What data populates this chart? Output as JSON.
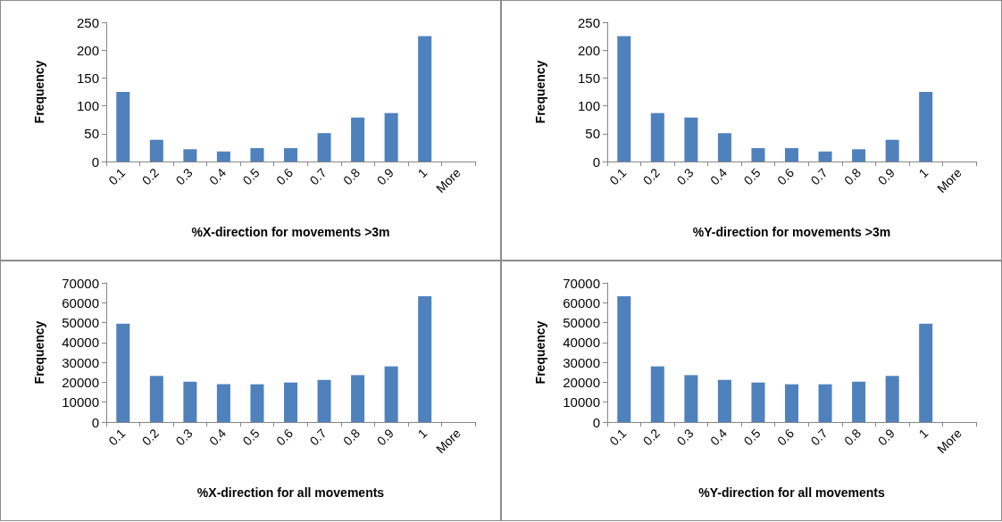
{
  "chart_data": [
    {
      "type": "bar",
      "xlabel": "%X-direction for movements >3m",
      "ylabel": "Frequency",
      "categories": [
        "0.1",
        "0.2",
        "0.3",
        "0.4",
        "0.5",
        "0.6",
        "0.7",
        "0.8",
        "0.9",
        "1",
        "More"
      ],
      "values": [
        125,
        39,
        22,
        18,
        24,
        24,
        51,
        79,
        87,
        225,
        0
      ],
      "color": "#4f81bd",
      "ylim": [
        0,
        250
      ],
      "yticks": [
        0,
        50,
        100,
        150,
        200,
        250
      ],
      "grid": false
    },
    {
      "type": "bar",
      "xlabel": "%Y-direction for movements >3m",
      "ylabel": "Frequency",
      "categories": [
        "0.1",
        "0.2",
        "0.3",
        "0.4",
        "0.5",
        "0.6",
        "0.7",
        "0.8",
        "0.9",
        "1",
        "More"
      ],
      "values": [
        225,
        87,
        79,
        51,
        24,
        24,
        18,
        22,
        39,
        125,
        0
      ],
      "color": "#4f81bd",
      "ylim": [
        0,
        250
      ],
      "yticks": [
        0,
        50,
        100,
        150,
        200,
        250
      ],
      "grid": false
    },
    {
      "type": "bar",
      "xlabel": "%X-direction for all movements",
      "ylabel": "Frequency",
      "categories": [
        "0.1",
        "0.2",
        "0.3",
        "0.4",
        "0.5",
        "0.6",
        "0.7",
        "0.8",
        "0.9",
        "1",
        "More"
      ],
      "values": [
        49500,
        23200,
        20300,
        19100,
        19000,
        19900,
        21200,
        23600,
        28000,
        63300,
        0
      ],
      "color": "#4f81bd",
      "ylim": [
        0,
        70000
      ],
      "yticks": [
        0,
        10000,
        20000,
        30000,
        40000,
        50000,
        60000,
        70000
      ],
      "grid": false
    },
    {
      "type": "bar",
      "xlabel": "%Y-direction for all movements",
      "ylabel": "Frequency",
      "categories": [
        "0.1",
        "0.2",
        "0.3",
        "0.4",
        "0.5",
        "0.6",
        "0.7",
        "0.8",
        "0.9",
        "1",
        "More"
      ],
      "values": [
        63300,
        28000,
        23600,
        21200,
        19900,
        19000,
        19000,
        20300,
        23200,
        49500,
        0
      ],
      "color": "#4f81bd",
      "ylim": [
        0,
        70000
      ],
      "yticks": [
        0,
        10000,
        20000,
        30000,
        40000,
        50000,
        60000,
        70000
      ],
      "grid": false
    }
  ]
}
